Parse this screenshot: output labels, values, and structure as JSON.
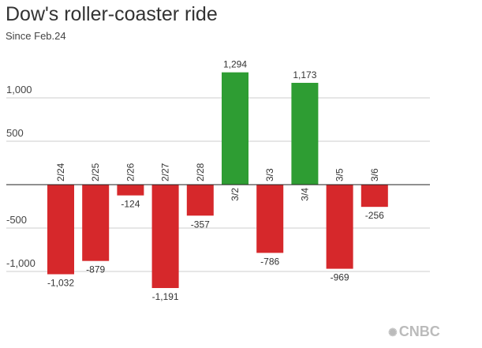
{
  "header": {
    "title": "Dow's roller-coaster ride",
    "subtitle": "Since Feb.24"
  },
  "logo": {
    "text": "CNBC",
    "icon": "peacock-icon"
  },
  "chart_data": {
    "type": "bar",
    "title": "Dow's roller-coaster ride",
    "subtitle": "Since Feb.24",
    "xlabel": "",
    "ylabel": "",
    "categories": [
      "2/24",
      "2/25",
      "2/26",
      "2/27",
      "2/28",
      "3/2",
      "3/3",
      "3/4",
      "3/5",
      "3/6"
    ],
    "values": [
      -1032,
      -879,
      -124,
      -1191,
      -357,
      1294,
      -786,
      1173,
      -969,
      -256
    ],
    "value_labels": [
      "-1,032",
      "-879",
      "-124",
      "-1,191",
      "-357",
      "1,294",
      "-786",
      "1,173",
      "-969",
      "-256"
    ],
    "yticks": [
      1000,
      500,
      -500,
      -1000
    ],
    "ytick_labels": [
      "1,000",
      "500",
      "-500",
      "-1,000"
    ],
    "ylim": [
      -1300,
      1400
    ],
    "grid": true,
    "colors": {
      "positive": "#2e9d33",
      "negative": "#d6282b"
    }
  }
}
